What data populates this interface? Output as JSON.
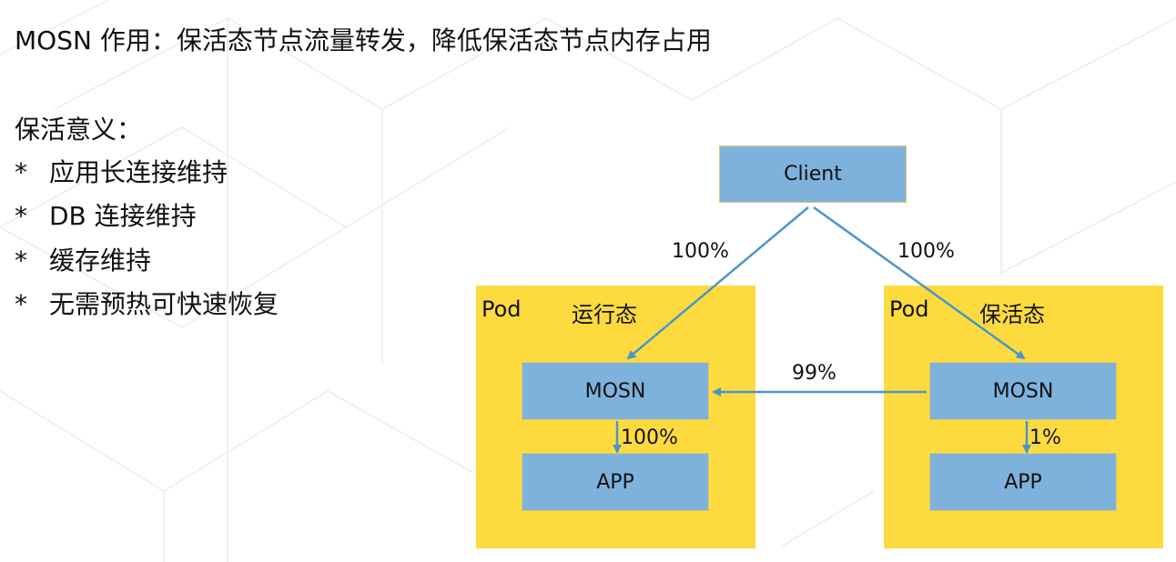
{
  "title": "MOSN 作用：保活态节点流量转发，降低保活态节点内存占用",
  "meaning": {
    "heading": "保活意义：",
    "items": [
      {
        "bullet": "*",
        "text": "应用长连接维持"
      },
      {
        "bullet": "*",
        "text": "DB 连接维持"
      },
      {
        "bullet": "*",
        "text": "缓存维持"
      },
      {
        "bullet": "*",
        "text": "无需预热可快速恢复"
      }
    ]
  },
  "diagram": {
    "client": "Client",
    "pods": [
      {
        "label": "Pod",
        "state": "运行态",
        "mosn": "MOSN",
        "app": "APP",
        "mosn_to_app": "100%"
      },
      {
        "label": "Pod",
        "state": "保活态",
        "mosn": "MOSN",
        "app": "APP",
        "mosn_to_app": "1%"
      }
    ],
    "client_to_left": "100%",
    "client_to_right": "100%",
    "right_to_left": "99%"
  },
  "colors": {
    "pod": "#fddb3f",
    "box": "#7eb2dc",
    "arrow": "#4a95c8"
  }
}
